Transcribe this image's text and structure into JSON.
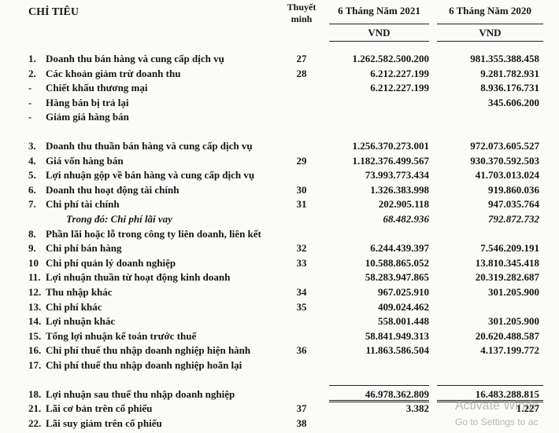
{
  "header": {
    "indicator": "CHỈ TIÊU",
    "note": "Thuyết minh",
    "period_2021": "6 Tháng Năm 2021",
    "period_2020": "6 Tháng Năm 2020",
    "currency_2021": "VND",
    "currency_2020": "VND"
  },
  "rows": [
    {
      "no": "1.",
      "label": "Doanh thu bán hàng và cung cấp dịch vụ",
      "note": "27",
      "y2021": "1.262.582.500.200",
      "y2020": "981.355.388.458"
    },
    {
      "no": "2.",
      "label": "Các khoản giảm trừ doanh thu",
      "note": "28",
      "y2021": "6.212.227.199",
      "y2020": "9.281.782.931"
    },
    {
      "no": "-",
      "label": "Chiết khấu thương mại",
      "y2021": "6.212.227.199",
      "y2020": "8.936.176.731"
    },
    {
      "no": "-",
      "label": "Hàng bán bị trả lại",
      "y2020": "345.606.200"
    },
    {
      "no": "-",
      "label": "Giảm giá hàng bán"
    },
    {
      "no": "3.",
      "label": "Doanh thu thuần bán hàng và cung cấp dịch vụ",
      "y2021": "1.256.370.273.001",
      "y2020": "972.073.605.527"
    },
    {
      "no": "4.",
      "label": "Giá vốn hàng bán",
      "note": "29",
      "y2021": "1.182.376.499.567",
      "y2020": "930.370.592.503"
    },
    {
      "no": "5.",
      "label": "Lợi nhuận gộp về bán hàng và cung cấp dịch vụ",
      "y2021": "73.993.773.434",
      "y2020": "41.703.013.024"
    },
    {
      "no": "6.",
      "label": "Doanh thu hoạt động tài chính",
      "note": "30",
      "y2021": "1.326.383.998",
      "y2020": "919.860.036"
    },
    {
      "no": "7.",
      "label": "Chi phí tài chính",
      "note": "31",
      "y2021": "202.905.118",
      "y2020": "947.035.764"
    },
    {
      "label": "Trong đó: Chi phí lãi vay",
      "y2021": "68.482.936",
      "y2020": "792.872.732"
    },
    {
      "no": "8.",
      "label": "Phần lãi hoặc lỗ trong công ty liên doanh, liên kết"
    },
    {
      "no": "9.",
      "label": "Chi phí bán hàng",
      "note": "32",
      "y2021": "6.244.439.397",
      "y2020": "7.546.209.191"
    },
    {
      "no": "10",
      "label": "Chi phí quản lý doanh nghiệp",
      "note": "33",
      "y2021": "10.588.865.052",
      "y2020": "13.810.345.418"
    },
    {
      "no": "11.",
      "label": "Lợi nhuận thuần từ hoạt động kinh doanh",
      "y2021": "58.283.947.865",
      "y2020": "20.319.282.687"
    },
    {
      "no": "12.",
      "label": "Thu nhập khác",
      "note": "34",
      "y2021": "967.025.910",
      "y2020": "301.205.900"
    },
    {
      "no": "13.",
      "label": "Chi phí khác",
      "note": "35",
      "y2021": "409.024.462"
    },
    {
      "no": "14.",
      "label": "Lợi nhuận khác",
      "y2021": "558.001.448",
      "y2020": "301.205.900"
    },
    {
      "no": "15.",
      "label": "Tổng lợi nhuận kế toán trước thuế",
      "y2021": "58.841.949.313",
      "y2020": "20.620.488.587"
    },
    {
      "no": "16.",
      "label": "Chi phí thuế thu nhập doanh nghiệp hiện hành",
      "note": "36",
      "y2021": "11.863.586.504",
      "y2020": "4.137.199.772"
    },
    {
      "no": "17.",
      "label": "Chi phí thuế thu nhập doanh nghiệp hoãn lại"
    },
    {
      "no": "18.",
      "label": "Lợi nhuận sau thuế thu nhập doanh nghiệp",
      "y2021": "46.978.362.809",
      "y2020": "16.483.288.815"
    },
    {
      "no": "21.",
      "label": "Lãi cơ bản trên cổ phiếu",
      "note": "37",
      "y2021": "3.382",
      "y2020": "1.227"
    },
    {
      "no": "22.",
      "label": "Lãi suy giảm trên cổ phiếu",
      "note": "38"
    }
  ],
  "watermark": {
    "line1": "Activate Windo",
    "line2": "Go to Settings to ac"
  }
}
